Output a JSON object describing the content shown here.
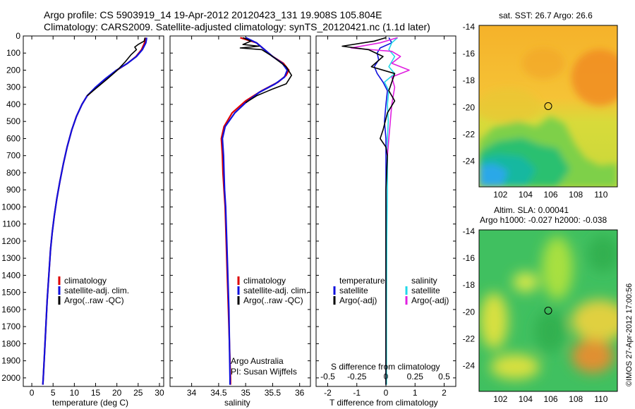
{
  "title_line1": "Argo profile: CS 5903919_14 19-Apr-2012 20120423_131 19.908S 105.804E",
  "title_line2": "Climatology: CARS2009. Satellite-adjusted climatology: synTS_20120421.nc (1.1d later)",
  "credit_org": "Argo Australia",
  "credit_pi": "PI: Susan Wijffels",
  "stamp": "©IMOS 27-Apr-2012 17:00:56",
  "colors": {
    "climatology": "#dd0000",
    "satellite": "#1010dd",
    "argo": "#000000",
    "sat_s": "#22d8e8",
    "argo_s": "#e020e0"
  },
  "chart_data": [
    {
      "type": "line",
      "name": "temperature-profile",
      "xlabel": "temperature (deg C)",
      "ylabel": "depth",
      "xlim": [
        -2,
        31
      ],
      "ylim": [
        2050,
        0
      ],
      "xticks": [
        0,
        5,
        10,
        15,
        20,
        25,
        30
      ],
      "yticks": [
        0,
        100,
        200,
        300,
        400,
        500,
        600,
        700,
        800,
        900,
        1000,
        1100,
        1200,
        1300,
        1400,
        1500,
        1600,
        1700,
        1800,
        1900,
        2000
      ],
      "legend": [
        "climatology",
        "satellite-adj. clim.",
        "Argo(..raw -QC)"
      ],
      "series": [
        {
          "name": "climatology",
          "color": "#dd0000",
          "points": [
            [
              26.8,
              10
            ],
            [
              26.5,
              40
            ],
            [
              25.8,
              80
            ],
            [
              24.5,
              120
            ],
            [
              22.5,
              160
            ],
            [
              20,
              200
            ],
            [
              17.5,
              250
            ],
            [
              15.2,
              300
            ],
            [
              13,
              350
            ],
            [
              11.8,
              400
            ],
            [
              10.5,
              470
            ],
            [
              9.4,
              550
            ],
            [
              8.3,
              650
            ],
            [
              7.4,
              750
            ],
            [
              6.6,
              850
            ],
            [
              5.9,
              950
            ],
            [
              5.3,
              1050
            ],
            [
              4.8,
              1150
            ],
            [
              4.4,
              1250
            ],
            [
              4,
              1400
            ],
            [
              3.6,
              1550
            ],
            [
              3.3,
              1700
            ],
            [
              3,
              1850
            ],
            [
              2.7,
              2000
            ],
            [
              2.6,
              2040
            ]
          ]
        },
        {
          "name": "satellite",
          "color": "#1010dd",
          "points": [
            [
              27,
              10
            ],
            [
              26.8,
              40
            ],
            [
              26,
              80
            ],
            [
              24.6,
              120
            ],
            [
              22.5,
              160
            ],
            [
              19.9,
              200
            ],
            [
              17.3,
              250
            ],
            [
              15,
              300
            ],
            [
              13,
              350
            ],
            [
              11.8,
              400
            ],
            [
              10.5,
              470
            ],
            [
              9.4,
              550
            ],
            [
              8.3,
              650
            ],
            [
              7.4,
              750
            ],
            [
              6.6,
              850
            ],
            [
              5.9,
              950
            ],
            [
              5.3,
              1050
            ],
            [
              4.8,
              1150
            ],
            [
              4.4,
              1250
            ],
            [
              4,
              1400
            ],
            [
              3.6,
              1550
            ],
            [
              3.3,
              1700
            ],
            [
              3,
              1850
            ],
            [
              2.7,
              2000
            ],
            [
              2.6,
              2040
            ]
          ]
        },
        {
          "name": "argo",
          "color": "#000000",
          "points": [
            [
              26.6,
              10
            ],
            [
              26.4,
              30
            ],
            [
              25,
              50
            ],
            [
              24.2,
              65
            ],
            [
              24.6,
              80
            ],
            [
              23.3,
              110
            ],
            [
              22,
              150
            ],
            [
              20.1,
              200
            ],
            [
              17.8,
              250
            ],
            [
              15.4,
              300
            ],
            [
              13,
              350
            ]
          ]
        }
      ]
    },
    {
      "type": "line",
      "name": "salinity-profile",
      "xlabel": "salinity",
      "xlim": [
        33.6,
        36.2
      ],
      "ylim": [
        2050,
        0
      ],
      "xticks": [
        34,
        34.5,
        35,
        35.5,
        36
      ],
      "legend": [
        "climatology",
        "satellite-adj. clim.",
        "Argo(..raw -QC)"
      ],
      "series": [
        {
          "name": "climatology",
          "color": "#dd0000",
          "points": [
            [
              34.9,
              10
            ],
            [
              35.2,
              40
            ],
            [
              35.35,
              80
            ],
            [
              35.5,
              120
            ],
            [
              35.7,
              160
            ],
            [
              35.8,
              200
            ],
            [
              35.75,
              230
            ],
            [
              35.6,
              270
            ],
            [
              35.3,
              320
            ],
            [
              35,
              380
            ],
            [
              34.75,
              450
            ],
            [
              34.6,
              530
            ],
            [
              34.55,
              600
            ],
            [
              34.56,
              650
            ],
            [
              34.57,
              700
            ],
            [
              34.58,
              800
            ],
            [
              34.6,
              900
            ],
            [
              34.62,
              1000
            ],
            [
              34.64,
              1200
            ],
            [
              34.66,
              1400
            ],
            [
              34.68,
              1600
            ],
            [
              34.7,
              1800
            ],
            [
              34.72,
              2000
            ],
            [
              34.72,
              2040
            ]
          ]
        },
        {
          "name": "satellite",
          "color": "#1010dd",
          "points": [
            [
              35,
              10
            ],
            [
              35.2,
              40
            ],
            [
              35.35,
              80
            ],
            [
              35.5,
              120
            ],
            [
              35.68,
              160
            ],
            [
              35.77,
              200
            ],
            [
              35.72,
              240
            ],
            [
              35.55,
              280
            ],
            [
              35.25,
              330
            ],
            [
              35,
              390
            ],
            [
              34.8,
              450
            ],
            [
              34.62,
              530
            ],
            [
              34.57,
              600
            ],
            [
              34.58,
              650
            ],
            [
              34.59,
              700
            ],
            [
              34.6,
              800
            ],
            [
              34.61,
              900
            ],
            [
              34.63,
              1000
            ],
            [
              34.65,
              1200
            ],
            [
              34.67,
              1400
            ],
            [
              34.69,
              1600
            ],
            [
              34.7,
              1800
            ],
            [
              34.71,
              2000
            ],
            [
              34.71,
              2040
            ]
          ]
        },
        {
          "name": "argo",
          "color": "#000000",
          "points": [
            [
              34.95,
              10
            ],
            [
              35.1,
              30
            ],
            [
              34.95,
              50
            ],
            [
              35.25,
              60
            ],
            [
              34.9,
              70
            ],
            [
              35.3,
              80
            ],
            [
              35.5,
              120
            ],
            [
              35.75,
              180
            ],
            [
              35.85,
              230
            ],
            [
              35.75,
              280
            ],
            [
              35.5,
              310
            ],
            [
              35.2,
              350
            ],
            [
              35,
              390
            ]
          ]
        }
      ]
    },
    {
      "type": "line",
      "name": "difference-profile",
      "xlabel": "T difference from climatology",
      "xlabel_top": "S difference from climatology",
      "xlim": [
        -2.4,
        2.4
      ],
      "ylim": [
        2050,
        0
      ],
      "xticks": [
        -2,
        -1,
        0,
        1,
        2
      ],
      "xticks_s": [
        -0.5,
        -0.25,
        0,
        0.25,
        0.5
      ],
      "legend_t_title": "temperature",
      "legend_s_title": "salinity",
      "legend_t": [
        "satellite",
        "Argo(-adj)"
      ],
      "legend_s": [
        "satellite",
        "Argo(-adj)"
      ],
      "series": [
        {
          "name": "T satellite",
          "color": "#1010dd",
          "points": [
            [
              0.1,
              10
            ],
            [
              0.2,
              40
            ],
            [
              -0.2,
              70
            ],
            [
              -0.3,
              100
            ],
            [
              -0.25,
              140
            ],
            [
              -0.4,
              180
            ],
            [
              -0.3,
              220
            ],
            [
              -0.1,
              270
            ],
            [
              0.05,
              320
            ],
            [
              0,
              400
            ],
            [
              -0.05,
              500
            ],
            [
              0,
              600
            ],
            [
              0,
              700
            ],
            [
              0,
              900
            ],
            [
              0,
              1200
            ],
            [
              0,
              1600
            ],
            [
              0,
              2040
            ]
          ]
        },
        {
          "name": "S satellite",
          "color": "#22d8e8",
          "points": [
            [
              0.4,
              10
            ],
            [
              0.2,
              40
            ],
            [
              0.1,
              80
            ],
            [
              0.3,
              120
            ],
            [
              0.1,
              180
            ],
            [
              0.3,
              220
            ],
            [
              -0.05,
              270
            ],
            [
              0.1,
              320
            ],
            [
              0.05,
              400
            ],
            [
              0.08,
              500
            ],
            [
              0.05,
              600
            ],
            [
              0.05,
              700
            ],
            [
              0.05,
              900
            ],
            [
              0.03,
              1200
            ],
            [
              0.02,
              1600
            ],
            [
              0.02,
              2040
            ]
          ]
        },
        {
          "name": "S argo",
          "color": "#e020e0",
          "points": [
            [
              0.4,
              10
            ],
            [
              -0.2,
              40
            ],
            [
              -1.2,
              70
            ],
            [
              0.2,
              90
            ],
            [
              0.5,
              120
            ],
            [
              0.2,
              160
            ],
            [
              0.8,
              200
            ],
            [
              0.2,
              240
            ],
            [
              0.3,
              300
            ],
            [
              0.2,
              400
            ],
            [
              0.15,
              500
            ],
            [
              0.1,
              600
            ],
            [
              0.05,
              700
            ]
          ]
        },
        {
          "name": "T argo",
          "color": "#000000",
          "points": [
            [
              0,
              10
            ],
            [
              -0.4,
              30
            ],
            [
              -1.5,
              60
            ],
            [
              -0.6,
              80
            ],
            [
              -0.1,
              120
            ],
            [
              -0.5,
              180
            ],
            [
              0.3,
              220
            ],
            [
              0.2,
              270
            ],
            [
              0.1,
              320
            ],
            [
              0.3,
              380
            ],
            [
              0.05,
              450
            ],
            [
              -0.1,
              550
            ],
            [
              -0.2,
              600
            ],
            [
              0,
              650
            ],
            [
              0.05,
              700
            ],
            [
              0,
              900
            ],
            [
              0,
              1200
            ],
            [
              0,
              1600
            ],
            [
              0,
              2040
            ]
          ]
        }
      ]
    },
    {
      "type": "heatmap",
      "name": "sst-map",
      "title": "sat. SST: 26.7  Argo: 26.6",
      "xlim": [
        100.3,
        111.3
      ],
      "ylim": [
        -25.9,
        -13.9
      ],
      "xticks": [
        102,
        104,
        106,
        108,
        110
      ],
      "yticks": [
        -14,
        -16,
        -18,
        -20,
        -22,
        -24
      ],
      "marker": [
        105.8,
        -19.9
      ]
    },
    {
      "type": "heatmap",
      "name": "sla-map",
      "title_line1": "Altim. SLA: 0.00041",
      "title_line2": "Argo h1000: -0.027 h2000: -0.038",
      "xlim": [
        100.3,
        111.3
      ],
      "ylim": [
        -25.9,
        -13.9
      ],
      "xticks": [
        102,
        104,
        106,
        108,
        110
      ],
      "yticks": [
        -14,
        -16,
        -18,
        -20,
        -22,
        -24
      ],
      "marker": [
        105.8,
        -19.9
      ]
    }
  ]
}
